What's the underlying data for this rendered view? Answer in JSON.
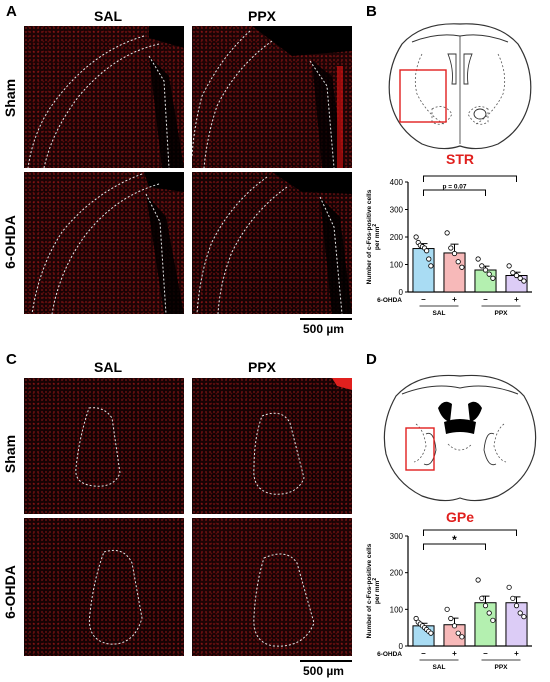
{
  "panels": {
    "A": {
      "letter": "A",
      "col_titles": [
        "SAL",
        "PPX"
      ],
      "row_labels": [
        "Sham",
        "6-OHDA"
      ],
      "scale_bar": "500 µm"
    },
    "B": {
      "letter": "B",
      "region": "STR"
    },
    "C": {
      "letter": "C",
      "col_titles": [
        "SAL",
        "PPX"
      ],
      "row_labels": [
        "Sham",
        "6-OHDA"
      ],
      "scale_bar": "500 µm"
    },
    "D": {
      "letter": "D",
      "region": "GPe"
    }
  },
  "chart_data": [
    {
      "type": "bar",
      "ylabel_line1": "Number of c-Fos-positive cells",
      "ylabel_line2": "per mm",
      "ylabel_sup": "2",
      "ylim": [
        0,
        400
      ],
      "yticks": [
        "0",
        "100",
        "200",
        "300",
        "400"
      ],
      "row_label": "6-OHDA",
      "treatment_signs": [
        "–",
        "+",
        "–",
        "+"
      ],
      "groups": [
        "SAL",
        "PPX"
      ],
      "series": [
        {
          "name": "SAL –",
          "value": 158,
          "sem": 18,
          "color": "#a9dcf3",
          "points": [
            200,
            180,
            170,
            165,
            160,
            150,
            120,
            95
          ]
        },
        {
          "name": "SAL +",
          "value": 142,
          "sem": 32,
          "color": "#f7b9b9",
          "points": [
            215,
            160,
            140,
            110,
            90
          ]
        },
        {
          "name": "PPX –",
          "value": 80,
          "sem": 14,
          "color": "#b4f0b0",
          "points": [
            120,
            95,
            80,
            65,
            50
          ]
        },
        {
          "name": "PPX +",
          "value": 60,
          "sem": 12,
          "color": "#dcccf6",
          "points": [
            95,
            70,
            60,
            50,
            40
          ]
        }
      ],
      "annotations": [
        {
          "from": 0,
          "to": 3,
          "label": "*"
        },
        {
          "from": 0,
          "to": 2,
          "label": "p = 0.07"
        }
      ]
    },
    {
      "type": "bar",
      "ylabel_line1": "Number of c-Fos-positive cells",
      "ylabel_line2": "per mm",
      "ylabel_sup": "2",
      "ylim": [
        0,
        300
      ],
      "yticks": [
        "0",
        "100",
        "200",
        "300"
      ],
      "row_label": "6-OHDA",
      "treatment_signs": [
        "–",
        "+",
        "–",
        "+"
      ],
      "groups": [
        "SAL",
        "PPX"
      ],
      "series": [
        {
          "name": "SAL –",
          "value": 55,
          "sem": 7,
          "color": "#a9dcf3",
          "points": [
            75,
            65,
            60,
            55,
            50,
            45,
            40,
            35
          ]
        },
        {
          "name": "SAL +",
          "value": 58,
          "sem": 18,
          "color": "#f7b9b9",
          "points": [
            100,
            75,
            55,
            35,
            25
          ]
        },
        {
          "name": "PPX –",
          "value": 118,
          "sem": 18,
          "color": "#b4f0b0",
          "points": [
            180,
            130,
            110,
            90,
            70
          ]
        },
        {
          "name": "PPX +",
          "value": 118,
          "sem": 16,
          "color": "#dcccf6",
          "points": [
            160,
            130,
            110,
            90,
            80
          ]
        }
      ],
      "annotations": [
        {
          "from": 0,
          "to": 3,
          "label": "*"
        },
        {
          "from": 0,
          "to": 2,
          "label": "*"
        }
      ]
    }
  ]
}
